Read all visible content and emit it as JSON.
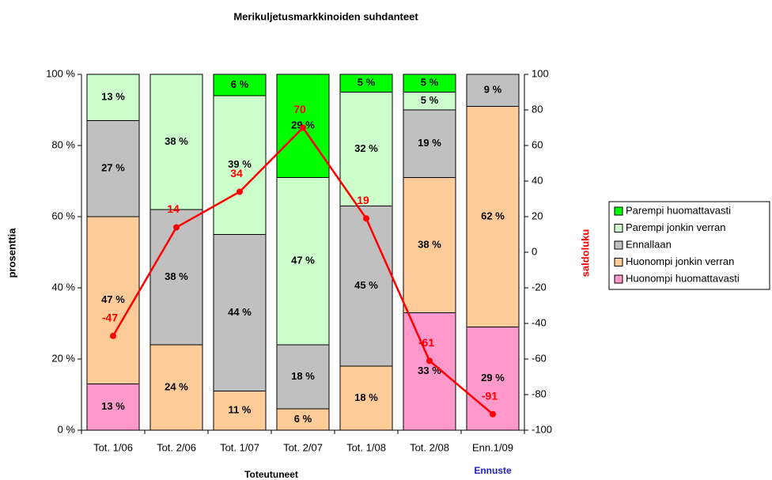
{
  "chart_data": {
    "type": "stacked_bar_line",
    "title": "Merikuljetusmarkkinoiden suhdanteet",
    "ylabel": "prosenttia",
    "y2label": "saldoluku",
    "y2label_color": "#ff0000",
    "annotations": [
      {
        "text": "Toteutuneet",
        "color": "#000000"
      },
      {
        "text": "Ennuste",
        "color": "#1f1fbf"
      }
    ],
    "categories": [
      "Tot. 1/06",
      "Tot. 2/06",
      "Tot. 1/07",
      "Tot. 2/07",
      "Tot. 1/08",
      "Tot. 2/08",
      "Enn.1/09"
    ],
    "series": [
      {
        "name": "Huonompi huomattavasti",
        "color": "#ff99cc",
        "values": [
          13,
          null,
          null,
          null,
          null,
          33,
          29
        ],
        "value_labels": [
          "13 %",
          null,
          null,
          null,
          null,
          "33 %",
          "29 %"
        ]
      },
      {
        "name": "Huonompi jonkin verran",
        "color": "#ffcc99",
        "values": [
          47,
          24,
          11,
          6,
          18,
          38,
          62
        ],
        "value_labels": [
          "47 %",
          "24 %",
          "11 %",
          "6 %",
          "18 %",
          "38 %",
          "62 %"
        ]
      },
      {
        "name": "Ennallaan",
        "color": "#c0c0c0",
        "values": [
          27,
          38,
          44,
          18,
          45,
          19,
          9
        ],
        "value_labels": [
          "27 %",
          "38 %",
          "44 %",
          "18 %",
          "45 %",
          "19 %",
          "9 %"
        ]
      },
      {
        "name": "Parempi jonkin verran",
        "color": "#ccffcc",
        "values": [
          13,
          38,
          39,
          47,
          32,
          5,
          null
        ],
        "value_labels": [
          "13 %",
          "38 %",
          "39 %",
          "47 %",
          "32 %",
          "5 %",
          null
        ]
      },
      {
        "name": "Parempi huomattavasti",
        "color": "#00ff00",
        "values": [
          null,
          null,
          6,
          29,
          5,
          5,
          null
        ],
        "value_labels": [
          null,
          null,
          "6 %",
          "29 %",
          "5 %",
          "5 %",
          null
        ]
      },
      {
        "name": "saldoluku",
        "type": "line",
        "axis": "y2",
        "color": "#ff0000",
        "values": [
          -47,
          14,
          34,
          70,
          19,
          -61,
          -91
        ]
      }
    ],
    "ylim": [
      0,
      100
    ],
    "yticks": [
      {
        "value": 0,
        "label": "0 %"
      },
      {
        "value": 20,
        "label": "20 %"
      },
      {
        "value": 40,
        "label": "40 %"
      },
      {
        "value": 60,
        "label": "60 %"
      },
      {
        "value": 80,
        "label": "80 %"
      },
      {
        "value": 100,
        "label": "100 %"
      }
    ],
    "y2lim": [
      -100,
      100
    ],
    "y2ticks": [
      -100,
      -80,
      -60,
      -40,
      -20,
      0,
      20,
      40,
      60,
      80,
      100
    ],
    "legend": "right"
  }
}
